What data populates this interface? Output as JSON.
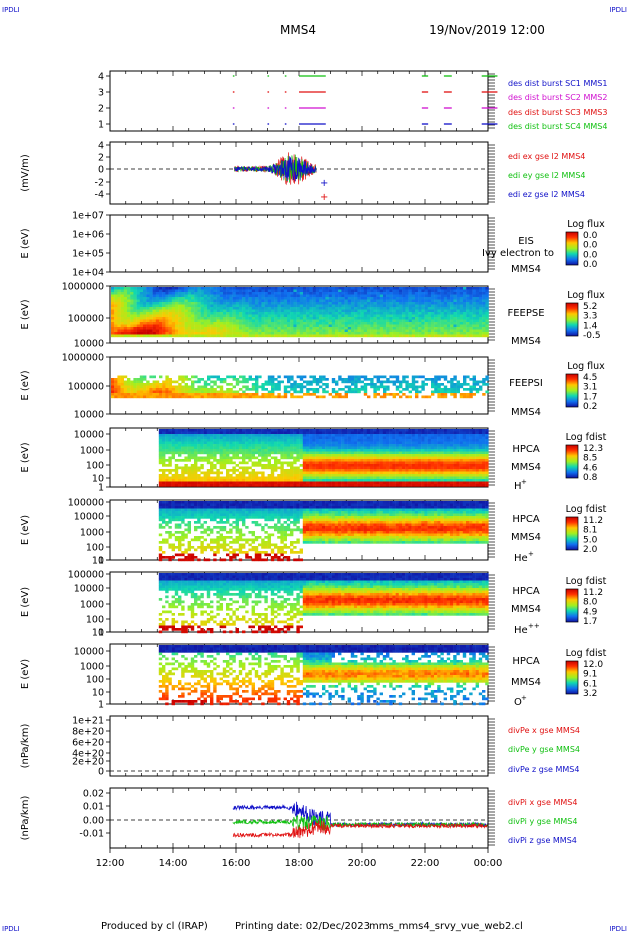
{
  "corners": {
    "top_left": "IPDLI",
    "top_right": "IPDLI",
    "bottom_left": "IPDLI",
    "bottom_right": "IPDLI"
  },
  "header": {
    "spacecraft": "MMS4",
    "date": "19/Nov/2019 12:00"
  },
  "footer": {
    "credit": "Produced by cl (IRAP)",
    "printing": "Printing date: 02/Dec/2023",
    "script": "mms_mms4_srvy_vue_web2.cl"
  },
  "colors": {
    "mms1": "#1010c8",
    "mms2": "#d010d0",
    "mms3": "#e01010",
    "mms4": "#10c010",
    "x": "#e01010",
    "y": "#10c010",
    "z": "#1010c8"
  },
  "chart_data": [
    {
      "type": "line",
      "panel": "burst",
      "yticks": [
        "4",
        "3",
        "2",
        "1"
      ],
      "ylim": [
        0.5,
        4.5
      ],
      "series": [
        {
          "name": "des dist burst SC1 MMS1",
          "y": 1,
          "color": "#1010c8",
          "segments": [
            [
              15.9,
              15.95
            ],
            [
              17.0,
              17.05
            ],
            [
              17.55,
              17.6
            ],
            [
              18.0,
              18.85
            ],
            [
              21.9,
              22.1
            ],
            [
              22.6,
              22.85
            ],
            [
              23.8,
              24.0
            ],
            [
              24.3,
              24.5
            ]
          ]
        },
        {
          "name": "des dist burst SC2 MMS2",
          "y": 2,
          "color": "#d010d0",
          "segments": [
            [
              15.9,
              15.95
            ],
            [
              17.0,
              17.05
            ],
            [
              17.55,
              17.6
            ],
            [
              18.0,
              18.85
            ],
            [
              21.9,
              22.1
            ],
            [
              22.6,
              22.85
            ],
            [
              23.8,
              24.0
            ],
            [
              24.3,
              24.5
            ]
          ]
        },
        {
          "name": "des dist burst SC3 MMS3",
          "y": 3,
          "color": "#e01010",
          "segments": [
            [
              15.9,
              15.95
            ],
            [
              17.0,
              17.05
            ],
            [
              17.55,
              17.6
            ],
            [
              18.0,
              18.85
            ],
            [
              21.9,
              22.1
            ],
            [
              22.6,
              22.85
            ],
            [
              23.8,
              24.0
            ],
            [
              24.3,
              24.5
            ]
          ]
        },
        {
          "name": "des dist burst SC4 MMS4",
          "y": 4,
          "color": "#10c010",
          "segments": [
            [
              15.9,
              15.95
            ],
            [
              17.0,
              17.05
            ],
            [
              17.55,
              17.6
            ],
            [
              18.0,
              18.85
            ],
            [
              21.9,
              22.1
            ],
            [
              22.6,
              22.85
            ],
            [
              23.8,
              24.0
            ],
            [
              24.3,
              24.5
            ]
          ]
        }
      ]
    },
    {
      "type": "line",
      "panel": "edi",
      "ylabel": "(mV/m)",
      "yticks": [
        "4",
        "2",
        "0",
        "-2",
        "-4"
      ],
      "ylim": [
        -5,
        5
      ],
      "series": [
        {
          "name": "edi ex gse l2 MMS4",
          "color": "#e01010",
          "x_range": [
            15.95,
            18.55
          ],
          "amplitude": 1.2
        },
        {
          "name": "edi ey gse l2 MMS4",
          "color": "#10c010",
          "x_range": [
            15.95,
            18.55
          ],
          "amplitude": 1.0
        },
        {
          "name": "edi ez gse l2 MMS4",
          "color": "#1010c8",
          "x_range": [
            15.95,
            18.55
          ],
          "amplitude": 0.9
        }
      ]
    },
    {
      "type": "heatmap",
      "panel": "eis",
      "ylabel": "E (eV)",
      "yticks": [
        "1e+07",
        "1e+06",
        "1e+05",
        "1e+04"
      ],
      "ylim": [
        10000,
        10000000
      ],
      "yscale": "log",
      "label_lines": [
        "EIS",
        "MMS4"
      ],
      "overlay": "Ivy electron to",
      "colorbar": {
        "title": "Log flux",
        "ticks": [
          "0.0",
          "0.0",
          "0.0",
          "0.0"
        ]
      }
    },
    {
      "type": "heatmap",
      "panel": "feepse",
      "ylabel": "E (eV)",
      "yticks": [
        "1000000",
        "100000",
        "10000"
      ],
      "ylim": [
        10000,
        1000000
      ],
      "yscale": "log",
      "label_lines": [
        "FEEPSE",
        "MMS4"
      ],
      "colorbar": {
        "title": "Log flux",
        "ticks": [
          "5.2",
          "3.3",
          "1.4",
          "-0.5"
        ]
      }
    },
    {
      "type": "heatmap",
      "panel": "feepsi",
      "ylabel": "E (eV)",
      "yticks": [
        "1000000",
        "100000",
        "10000"
      ],
      "ylim": [
        10000,
        1000000
      ],
      "yscale": "log",
      "label_lines": [
        "FEEPSI",
        "MMS4"
      ],
      "colorbar": {
        "title": "Log flux",
        "ticks": [
          "4.5",
          "3.1",
          "1.7",
          "0.2"
        ]
      }
    },
    {
      "type": "heatmap",
      "panel": "hpca_h",
      "ylabel": "E (eV)",
      "yticks": [
        "10000",
        "1000",
        "100",
        "10",
        "1"
      ],
      "ylim": [
        1,
        30000
      ],
      "yscale": "log",
      "label_lines": [
        "HPCA",
        "MMS4"
      ],
      "species": "H",
      "charge": "+",
      "colorbar": {
        "title": "Log fdist",
        "ticks": [
          "12.3",
          "8.5",
          "4.6",
          "0.8"
        ]
      }
    },
    {
      "type": "heatmap",
      "panel": "hpca_he",
      "ylabel": "E (eV)",
      "yticks": [
        "100000",
        "10000",
        "1000",
        "100",
        "10",
        "1"
      ],
      "ylim": [
        1,
        100000
      ],
      "yscale": "log",
      "label_lines": [
        "HPCA",
        "MMS4"
      ],
      "species": "He",
      "charge": "+",
      "colorbar": {
        "title": "Log fdist",
        "ticks": [
          "11.2",
          "8.1",
          "5.0",
          "2.0"
        ]
      }
    },
    {
      "type": "heatmap",
      "panel": "hpca_hepp",
      "ylabel": "E (eV)",
      "yticks": [
        "100000",
        "10000",
        "1000",
        "100",
        "10",
        "1"
      ],
      "ylim": [
        1,
        100000
      ],
      "yscale": "log",
      "label_lines": [
        "HPCA",
        "MMS4"
      ],
      "species": "He",
      "charge": "++",
      "colorbar": {
        "title": "Log fdist",
        "ticks": [
          "11.2",
          "8.0",
          "4.9",
          "1.7"
        ]
      }
    },
    {
      "type": "heatmap",
      "panel": "hpca_o",
      "ylabel": "E (eV)",
      "yticks": [
        "10000",
        "1000",
        "100",
        "10",
        "1"
      ],
      "ylim": [
        1,
        30000
      ],
      "yscale": "log",
      "label_lines": [
        "HPCA",
        "MMS4"
      ],
      "species": "O",
      "charge": "+",
      "colorbar": {
        "title": "Log fdist",
        "ticks": [
          "12.0",
          "9.1",
          "6.1",
          "3.2"
        ]
      }
    },
    {
      "type": "line",
      "panel": "divpe",
      "ylabel": "(nPa/km)",
      "yticks": [
        "1e+21",
        "8e+20",
        "6e+20",
        "4e+20",
        "2e+20",
        "0"
      ],
      "ylim": [
        0,
        1e+21
      ],
      "series": [
        {
          "name": "divPe x gse MMS4",
          "color": "#e01010"
        },
        {
          "name": "divPe y gse MMS4",
          "color": "#10c010"
        },
        {
          "name": "divPe z gse MMS4",
          "color": "#1010c8"
        }
      ]
    },
    {
      "type": "line",
      "panel": "divpi",
      "ylabel": "(nPa/km)",
      "yticks": [
        "0.02",
        "0.01",
        "0.00",
        "-0.01"
      ],
      "ylim": [
        -0.018,
        0.028
      ],
      "series": [
        {
          "name": "divPi x gse MMS4",
          "color": "#e01010",
          "x_range": [
            15.9,
            24.0
          ],
          "levels": [
            -0.008,
            -0.002,
            -0.001
          ]
        },
        {
          "name": "divPi y gse MMS4",
          "color": "#10c010",
          "x_range": [
            15.9,
            24.0
          ],
          "levels": [
            0.002,
            0.001,
            0.0
          ]
        },
        {
          "name": "divPi z gse MMS4",
          "color": "#1010c8",
          "x_range": [
            15.9,
            24.0
          ],
          "levels": [
            0.013,
            0.004,
            0.0
          ]
        }
      ]
    }
  ],
  "x_axis": {
    "ticks": [
      "12:00",
      "14:00",
      "16:00",
      "18:00",
      "20:00",
      "22:00",
      "00:00"
    ],
    "range_hours": [
      12,
      24
    ]
  }
}
